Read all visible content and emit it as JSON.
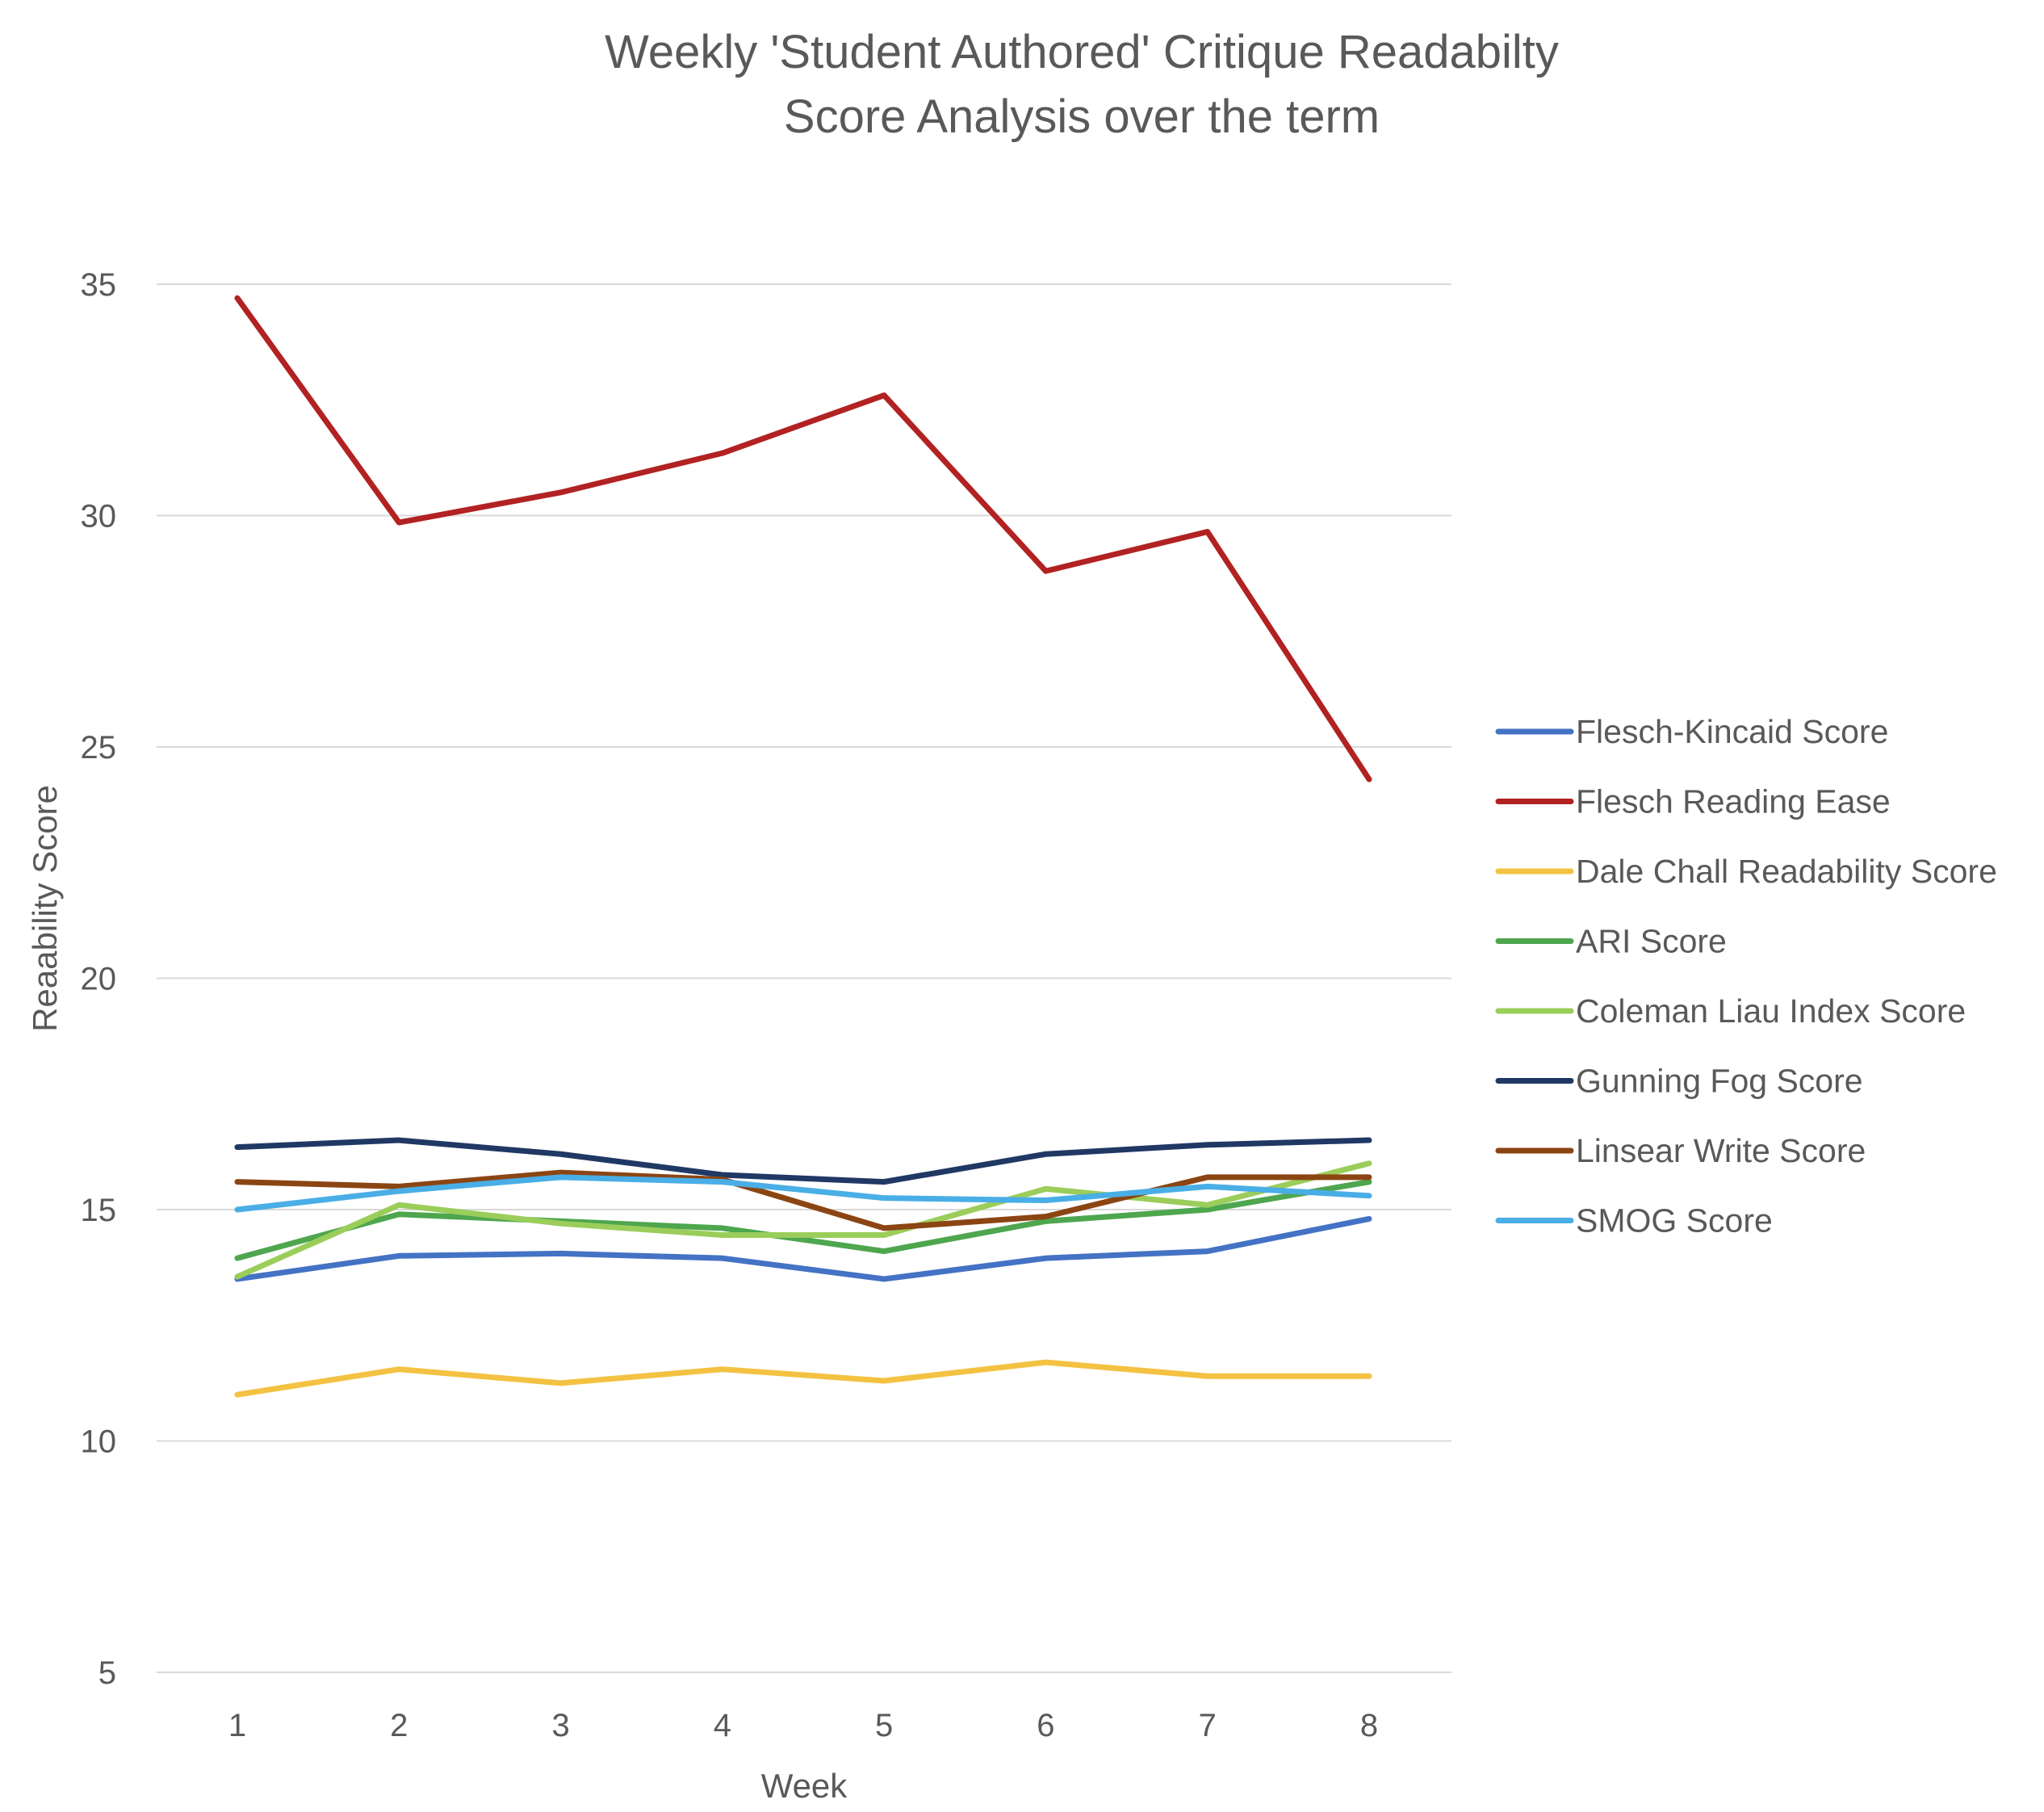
{
  "chart_data": {
    "type": "line",
    "title_lines": [
      "Weekly 'Student Authored' Critique Readabilty",
      "Score Analysis over the term"
    ],
    "xlabel": "Week",
    "ylabel": "Reaability Score",
    "categories": [
      "1",
      "2",
      "3",
      "4",
      "5",
      "6",
      "7",
      "8"
    ],
    "ylim": [
      5,
      35
    ],
    "yticks": [
      "5",
      "10",
      "15",
      "20",
      "25",
      "30",
      "35"
    ],
    "grid": true,
    "legend_position": "right",
    "series": [
      {
        "name": "Flesch-Kincaid Score",
        "color": "#4472C4",
        "values": [
          13.5,
          14.0,
          14.05,
          13.95,
          13.5,
          13.95,
          14.1,
          14.8
        ]
      },
      {
        "name": "Flesch Reading Ease",
        "color": "#B22222",
        "values": [
          34.7,
          29.85,
          30.5,
          31.35,
          32.6,
          28.8,
          29.65,
          24.3
        ]
      },
      {
        "name": "Dale Chall Readability Score",
        "color": "#F4C242",
        "values": [
          11.0,
          11.55,
          11.25,
          11.55,
          11.3,
          11.7,
          11.4,
          11.4
        ]
      },
      {
        "name": "ARI Score",
        "color": "#4EA64E",
        "values": [
          13.95,
          14.9,
          14.75,
          14.6,
          14.1,
          14.75,
          15.0,
          15.6
        ]
      },
      {
        "name": "Coleman Liau Index Score",
        "color": "#9ACD5A",
        "values": [
          13.55,
          15.1,
          14.7,
          14.45,
          14.45,
          15.45,
          15.1,
          16.0
        ]
      },
      {
        "name": "Gunning Fog Score",
        "color": "#203864",
        "values": [
          16.35,
          16.5,
          16.2,
          15.75,
          15.6,
          16.2,
          16.4,
          16.5
        ]
      },
      {
        "name": "Linsear Write Score",
        "color": "#8B4513",
        "values": [
          15.6,
          15.5,
          15.8,
          15.65,
          14.6,
          14.85,
          15.7,
          15.7
        ]
      },
      {
        "name": "SMOG Score",
        "color": "#4AAEE6",
        "values": [
          15.0,
          15.4,
          15.7,
          15.6,
          15.25,
          15.2,
          15.5,
          15.3
        ]
      }
    ]
  }
}
